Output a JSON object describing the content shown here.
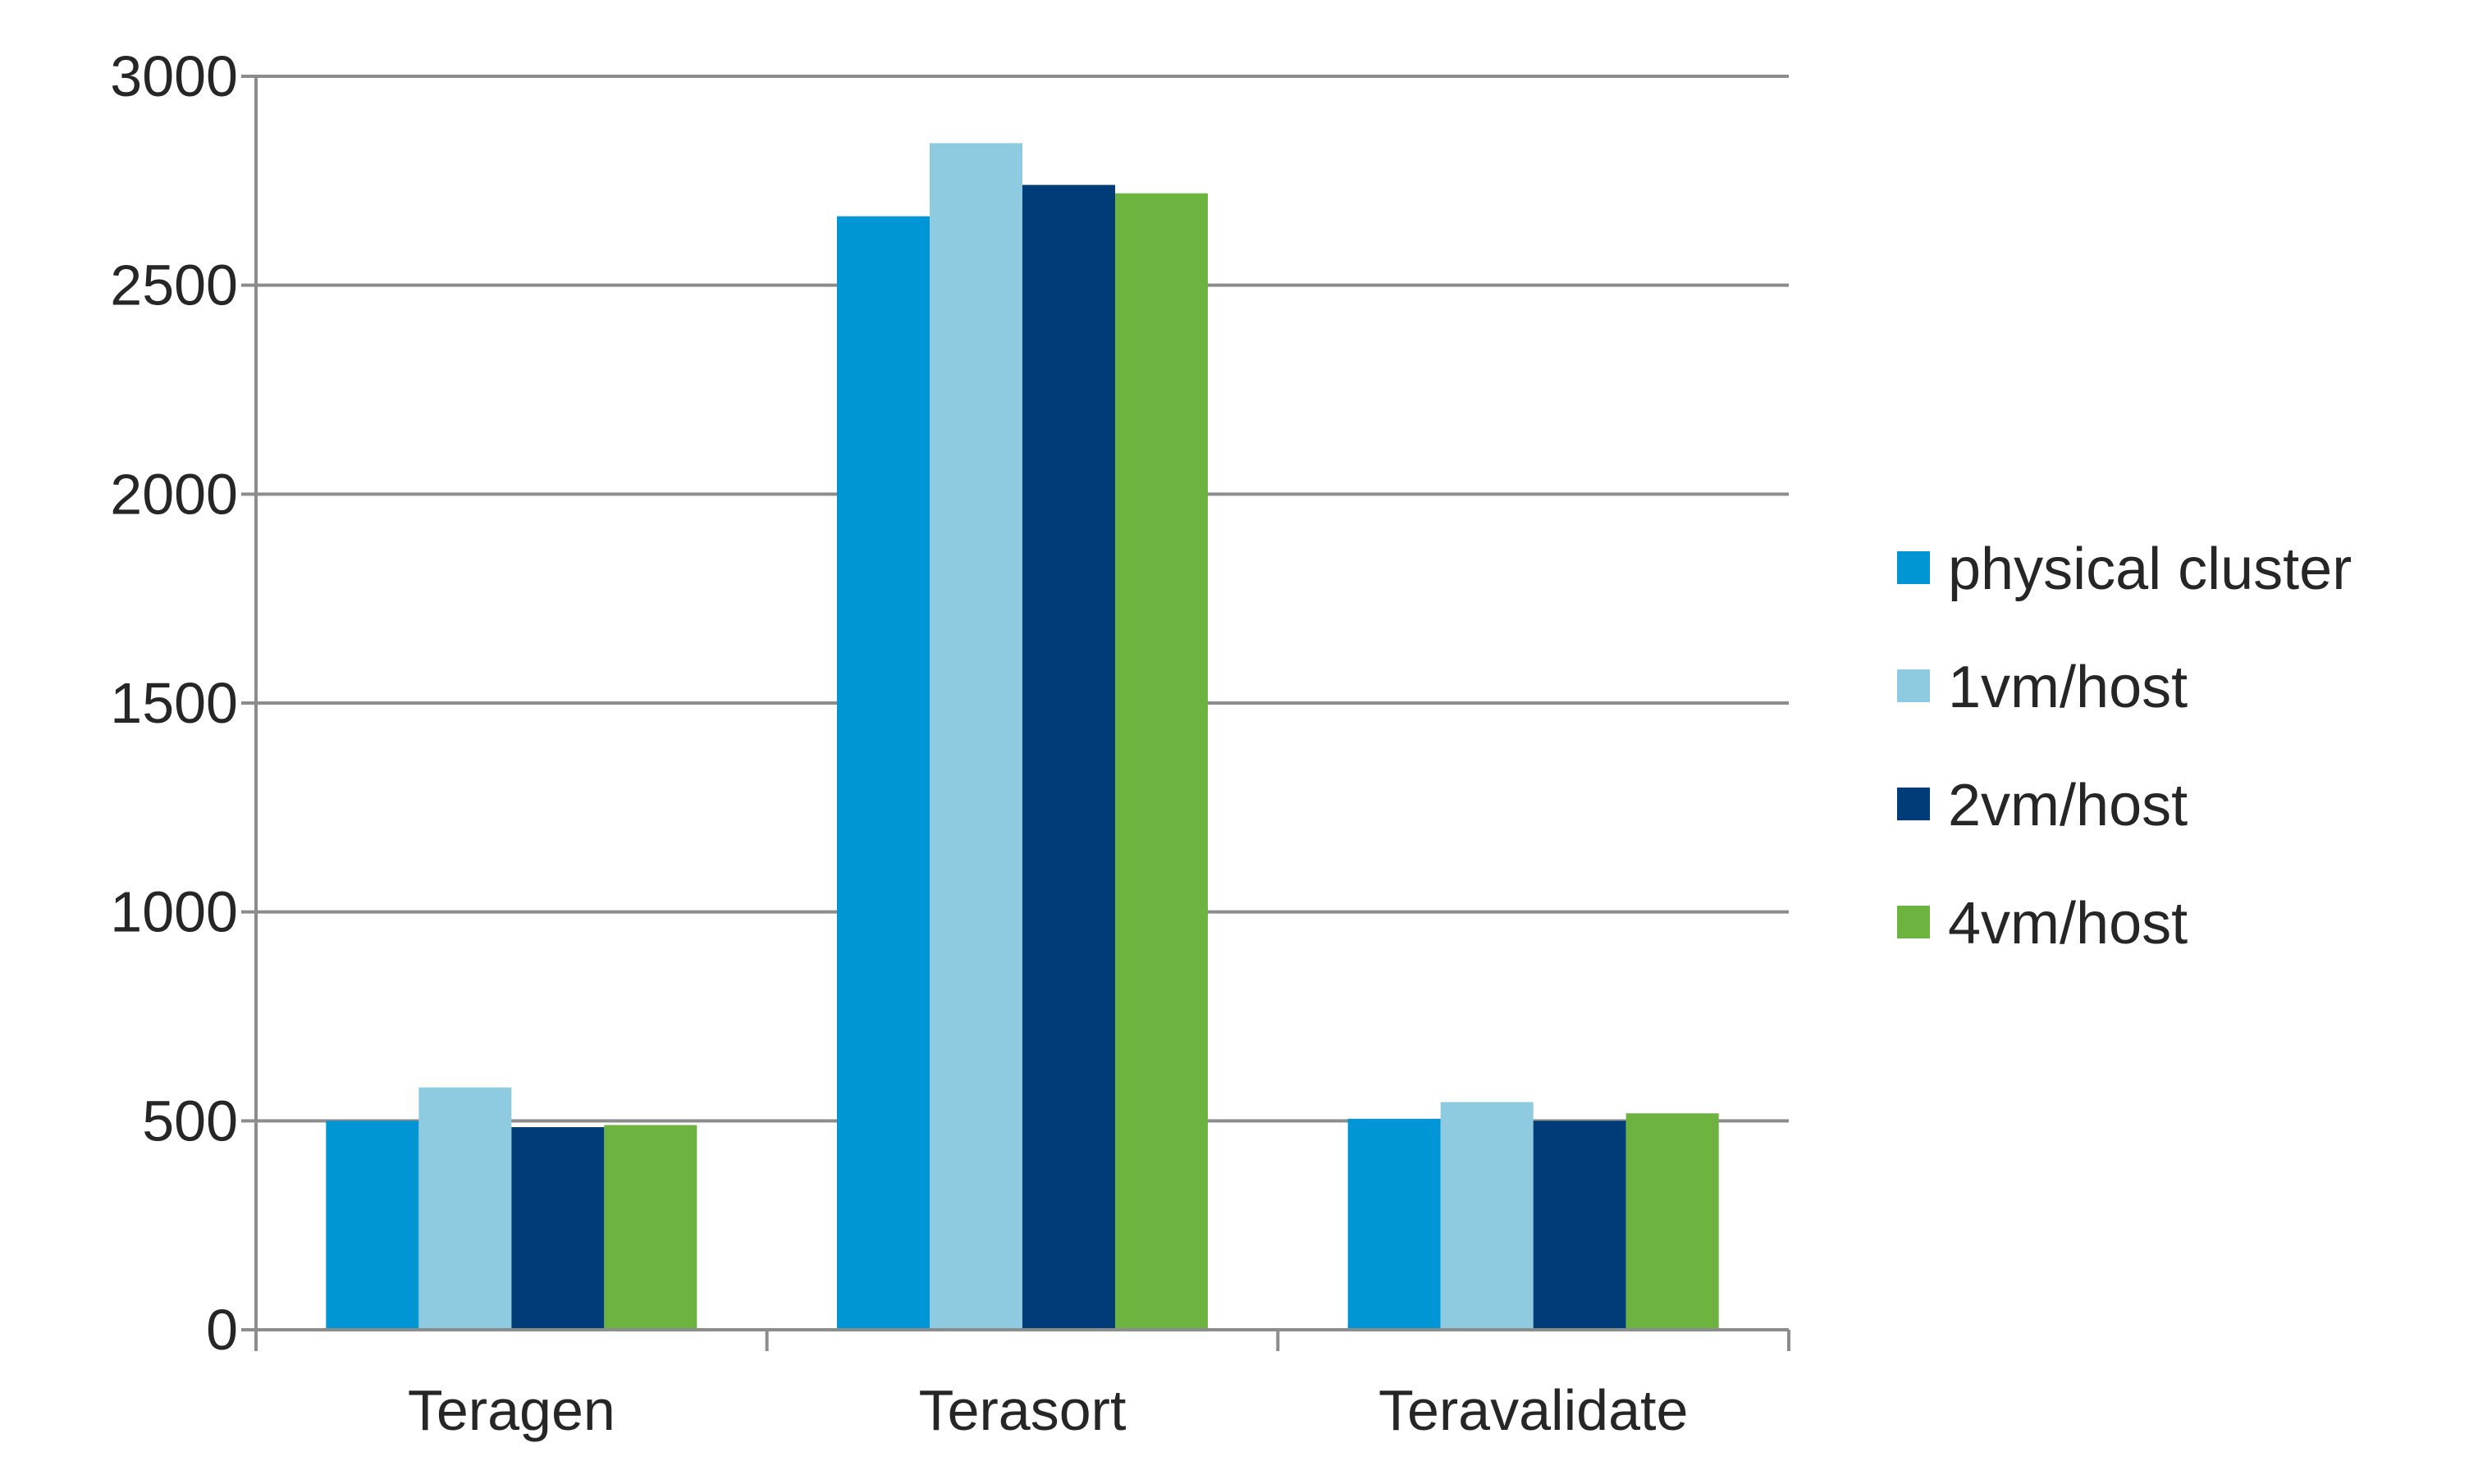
{
  "chart_data": {
    "type": "bar",
    "title": "",
    "xlabel": "",
    "ylabel": "",
    "categories": [
      "Teragen",
      "Terasort",
      "Teravalidate"
    ],
    "series": [
      {
        "name": "physical cluster",
        "color": "#0096D6",
        "values": [
          500,
          2665,
          505
        ]
      },
      {
        "name": "1vm/host",
        "color": "#8ECAE0",
        "values": [
          580,
          2840,
          545
        ]
      },
      {
        "name": "2vm/host",
        "color": "#003D78",
        "values": [
          485,
          2740,
          500
        ]
      },
      {
        "name": "4vm/host",
        "color": "#6DB33F",
        "values": [
          490,
          2720,
          518
        ]
      }
    ],
    "ylim": [
      0,
      3000
    ],
    "yticks": [
      "0",
      "500",
      "1000",
      "1500",
      "2000",
      "2500",
      "3000"
    ],
    "grid": true,
    "legend_position": "right"
  }
}
